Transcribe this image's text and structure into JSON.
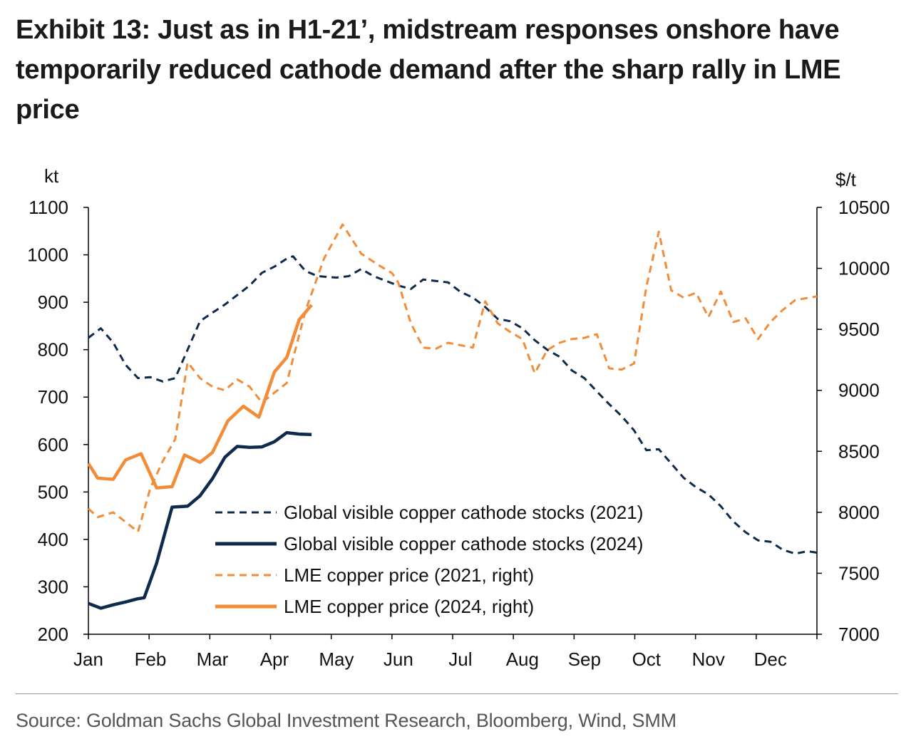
{
  "title": "Exhibit 13: Just as in H1-21’, midstream responses onshore have temporarily reduced cathode demand after the sharp rally in LME price",
  "source": "Source: Goldman Sachs Global Investment Research, Bloomberg, Wind, SMM",
  "colors": {
    "navy": "#0e2a4c",
    "orange": "#f28c38",
    "axis": "#000000"
  },
  "chart_data": {
    "type": "line",
    "title": "",
    "left_axis": {
      "unit_label": "kt",
      "ylim": [
        200,
        1100
      ],
      "ticks": [
        200,
        300,
        400,
        500,
        600,
        700,
        800,
        900,
        1000,
        1100
      ]
    },
    "right_axis": {
      "unit_label": "$/t",
      "ylim": [
        7000,
        10500
      ],
      "ticks": [
        7000,
        7500,
        8000,
        8500,
        9000,
        9500,
        10000,
        10500
      ]
    },
    "x_ticks": [
      "Jan",
      "Feb",
      "Mar",
      "Apr",
      "May",
      "Jun",
      "Jul",
      "Aug",
      "Sep",
      "Oct",
      "Nov",
      "Dec"
    ],
    "x_range": [
      0,
      11.75
    ],
    "legend": "center-bottom",
    "grid": false,
    "series": [
      {
        "name": "Global visible copper cathode stocks (2021)",
        "axis": "left",
        "color": "#0e2a4c",
        "style": "dashed",
        "points": [
          [
            0,
            825
          ],
          [
            0.2,
            845
          ],
          [
            0.4,
            815
          ],
          [
            0.6,
            768
          ],
          [
            0.8,
            740
          ],
          [
            1.0,
            742
          ],
          [
            1.2,
            733
          ],
          [
            1.4,
            740
          ],
          [
            1.8,
            860
          ],
          [
            2.0,
            878
          ],
          [
            2.2,
            895
          ],
          [
            2.4,
            915
          ],
          [
            2.6,
            935
          ],
          [
            2.8,
            962
          ],
          [
            3.0,
            975
          ],
          [
            3.2,
            992
          ],
          [
            3.3,
            997
          ],
          [
            3.5,
            966
          ],
          [
            3.7,
            955
          ],
          [
            4.0,
            952
          ],
          [
            4.2,
            955
          ],
          [
            4.4,
            970
          ],
          [
            4.6,
            955
          ],
          [
            4.8,
            945
          ],
          [
            5.0,
            935
          ],
          [
            5.2,
            928
          ],
          [
            5.4,
            948
          ],
          [
            5.6,
            945
          ],
          [
            5.8,
            942
          ],
          [
            6.0,
            922
          ],
          [
            6.2,
            910
          ],
          [
            6.4,
            890
          ],
          [
            6.6,
            865
          ],
          [
            6.8,
            860
          ],
          [
            7.0,
            845
          ],
          [
            7.2,
            820
          ],
          [
            7.4,
            800
          ],
          [
            7.6,
            785
          ],
          [
            7.8,
            756
          ],
          [
            8.0,
            740
          ],
          [
            8.2,
            712
          ],
          [
            8.4,
            685
          ],
          [
            8.6,
            660
          ],
          [
            8.8,
            630
          ],
          [
            9.0,
            588
          ],
          [
            9.2,
            590
          ],
          [
            9.4,
            560
          ],
          [
            9.6,
            530
          ],
          [
            9.8,
            510
          ],
          [
            10.0,
            495
          ],
          [
            10.2,
            470
          ],
          [
            10.4,
            438
          ],
          [
            10.6,
            415
          ],
          [
            10.8,
            398
          ],
          [
            11.0,
            395
          ],
          [
            11.2,
            378
          ],
          [
            11.4,
            370
          ],
          [
            11.6,
            375
          ],
          [
            11.75,
            372
          ]
        ]
      },
      {
        "name": "Global visible copper cathode stocks (2024)",
        "axis": "left",
        "color": "#0e2a4c",
        "style": "solid",
        "points": [
          [
            0,
            265
          ],
          [
            0.2,
            255
          ],
          [
            0.4,
            262
          ],
          [
            0.6,
            268
          ],
          [
            0.8,
            275
          ],
          [
            0.9,
            277
          ],
          [
            1.1,
            350
          ],
          [
            1.35,
            468
          ],
          [
            1.6,
            470
          ],
          [
            1.8,
            492
          ],
          [
            2.0,
            528
          ],
          [
            2.2,
            573
          ],
          [
            2.4,
            596
          ],
          [
            2.6,
            594
          ],
          [
            2.8,
            595
          ],
          [
            3.0,
            606
          ],
          [
            3.2,
            625
          ],
          [
            3.4,
            622
          ],
          [
            3.6,
            621
          ]
        ]
      },
      {
        "name": "LME copper price (2021, right)",
        "axis": "right",
        "color": "#f28c38",
        "style": "dashed",
        "points": [
          [
            0,
            8030
          ],
          [
            0.15,
            7960
          ],
          [
            0.4,
            8000
          ],
          [
            0.6,
            7920
          ],
          [
            0.8,
            7840
          ],
          [
            1.0,
            8200
          ],
          [
            1.2,
            8420
          ],
          [
            1.4,
            8600
          ],
          [
            1.6,
            9230
          ],
          [
            1.8,
            9100
          ],
          [
            2.0,
            9030
          ],
          [
            2.2,
            9000
          ],
          [
            2.4,
            9090
          ],
          [
            2.6,
            9030
          ],
          [
            2.8,
            8900
          ],
          [
            3.0,
            8980
          ],
          [
            3.2,
            9060
          ],
          [
            3.5,
            9650
          ],
          [
            3.8,
            10080
          ],
          [
            4.1,
            10360
          ],
          [
            4.4,
            10120
          ],
          [
            4.7,
            10020
          ],
          [
            4.9,
            9960
          ],
          [
            5.0,
            9880
          ],
          [
            5.2,
            9550
          ],
          [
            5.4,
            9350
          ],
          [
            5.6,
            9340
          ],
          [
            5.8,
            9390
          ],
          [
            6.0,
            9370
          ],
          [
            6.2,
            9350
          ],
          [
            6.4,
            9730
          ],
          [
            6.6,
            9550
          ],
          [
            6.8,
            9480
          ],
          [
            7.0,
            9420
          ],
          [
            7.2,
            9140
          ],
          [
            7.4,
            9330
          ],
          [
            7.6,
            9390
          ],
          [
            7.8,
            9420
          ],
          [
            8.0,
            9430
          ],
          [
            8.2,
            9460
          ],
          [
            8.4,
            9180
          ],
          [
            8.6,
            9170
          ],
          [
            8.8,
            9220
          ],
          [
            9.0,
            9850
          ],
          [
            9.2,
            10300
          ],
          [
            9.4,
            9820
          ],
          [
            9.6,
            9760
          ],
          [
            9.8,
            9800
          ],
          [
            10.0,
            9600
          ],
          [
            10.2,
            9810
          ],
          [
            10.4,
            9560
          ],
          [
            10.6,
            9590
          ],
          [
            10.8,
            9420
          ],
          [
            11.0,
            9560
          ],
          [
            11.2,
            9660
          ],
          [
            11.4,
            9740
          ],
          [
            11.75,
            9770
          ]
        ]
      },
      {
        "name": "LME copper price (2024, right)",
        "axis": "right",
        "color": "#f28c38",
        "style": "solid",
        "points": [
          [
            0,
            8400
          ],
          [
            0.15,
            8280
          ],
          [
            0.4,
            8270
          ],
          [
            0.6,
            8430
          ],
          [
            0.85,
            8480
          ],
          [
            1.1,
            8200
          ],
          [
            1.35,
            8210
          ],
          [
            1.55,
            8470
          ],
          [
            1.8,
            8410
          ],
          [
            2.0,
            8490
          ],
          [
            2.25,
            8750
          ],
          [
            2.5,
            8870
          ],
          [
            2.75,
            8780
          ],
          [
            3.0,
            9150
          ],
          [
            3.2,
            9270
          ],
          [
            3.4,
            9580
          ],
          [
            3.6,
            9700
          ]
        ]
      }
    ]
  }
}
